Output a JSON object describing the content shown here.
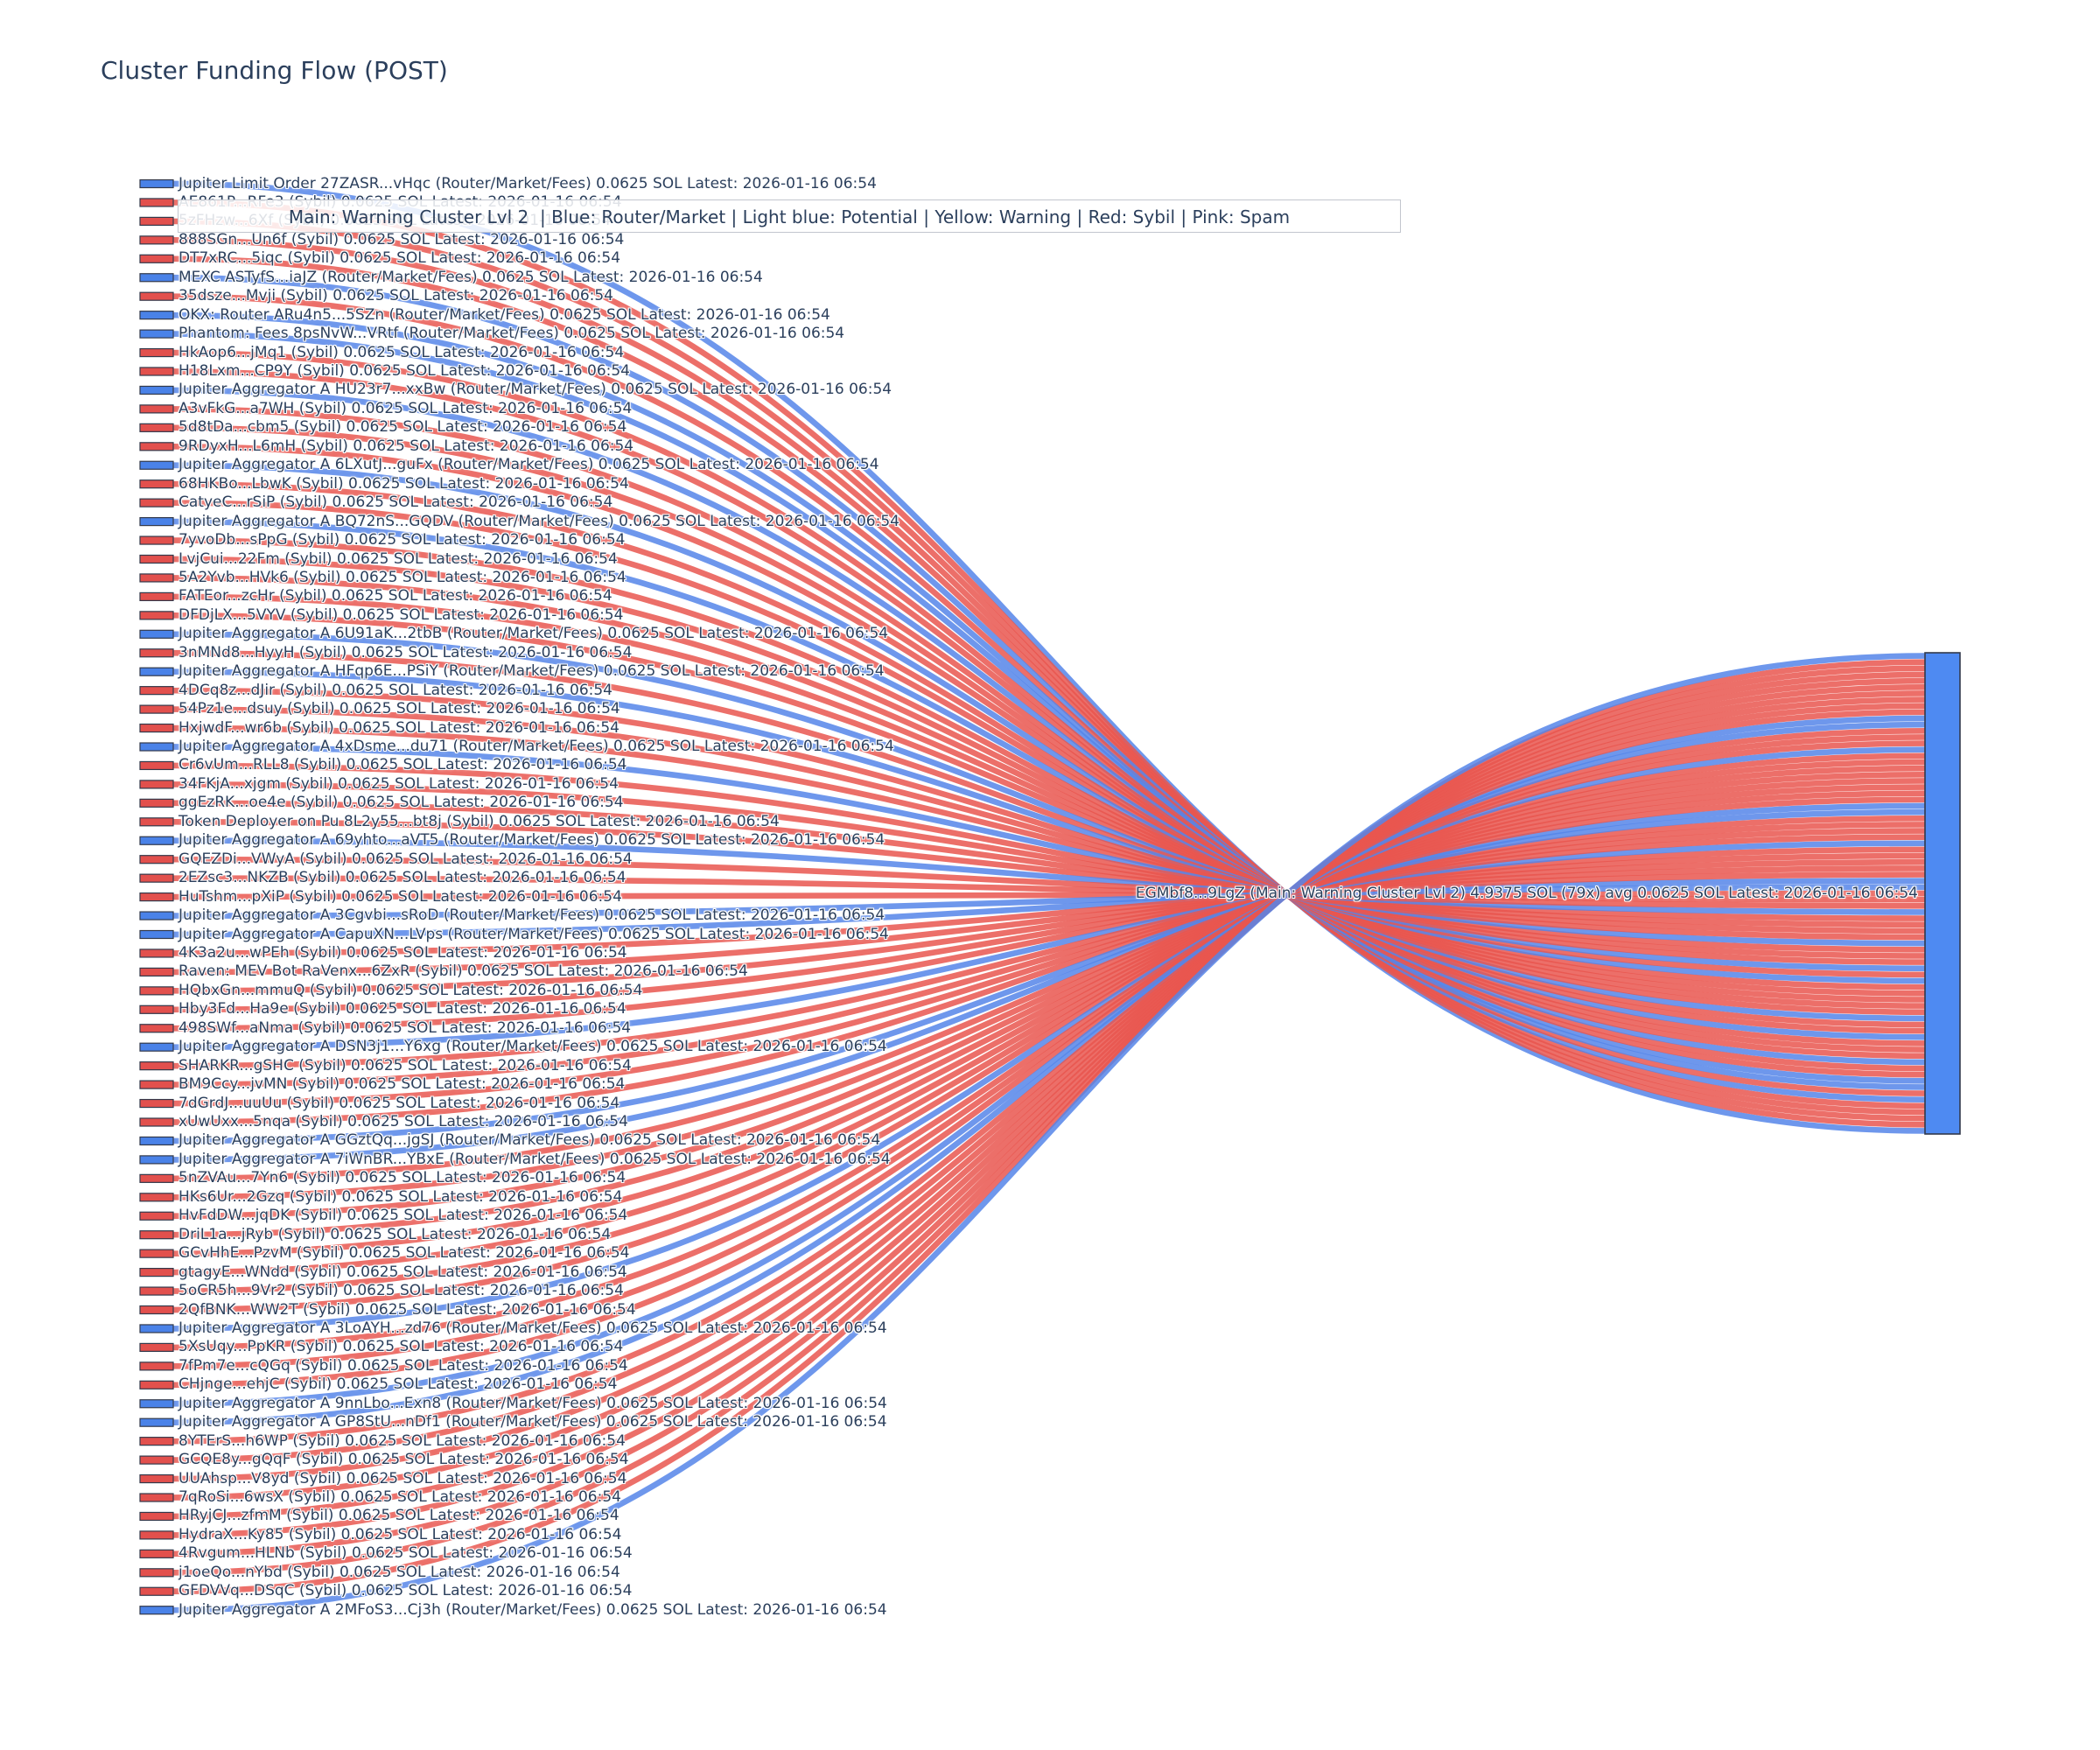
{
  "title": "Cluster Funding Flow (POST)",
  "legend_annotation": "Main: Warning Cluster Lvl 2  | Blue: Router/Market | Light blue: Potential | Yellow: Warning | Red: Sybil | Pink: Spam",
  "colors": {
    "router_node": "#4a82e8",
    "router_link": "#5585e9",
    "sybil_node": "#e2504d",
    "sybil_link": "#e9564f",
    "target_node": "#4e8af2",
    "node_border": "#32394b",
    "label_text": "#2b3f5c"
  },
  "chart_data": {
    "type": "sankey",
    "unit_value_sol": 0.0625,
    "total_sol": 4.9375,
    "flow_count": "79x",
    "latest": "2026-01-16 06:54",
    "target": {
      "label": "EGMbf8...9LgZ (Main: Warning Cluster Lvl 2) 4.9375 SOL (79x) avg 0.0625 SOL Latest: 2026-01-16 06:54"
    },
    "sources": [
      {
        "type": "router",
        "label": "Jupiter Limit Order 27ZASR...vHqc (Router/Market/Fees) 0.0625 SOL Latest: 2026-01-16 06:54"
      },
      {
        "type": "sybil",
        "label": "AE861P...RFe3 (Sybil) 0.0625 SOL Latest: 2026-01-16 06:54"
      },
      {
        "type": "sybil",
        "label": "5zFHzw...6Xf (Sybil) 0.0625 SOL Latest: 2026-01-16 06:54"
      },
      {
        "type": "sybil",
        "label": "888SGn...Un6f (Sybil) 0.0625 SOL Latest: 2026-01-16 06:54"
      },
      {
        "type": "sybil",
        "label": "DT7xRC...5iqc (Sybil) 0.0625 SOL Latest: 2026-01-16 06:54"
      },
      {
        "type": "router",
        "label": "MEXC ASTyfS...iaJZ (Router/Market/Fees) 0.0625 SOL Latest: 2026-01-16 06:54"
      },
      {
        "type": "sybil",
        "label": "35dsze...Mvji (Sybil) 0.0625 SOL Latest: 2026-01-16 06:54"
      },
      {
        "type": "router",
        "label": "OKX: Router ARu4n5...5SZn (Router/Market/Fees) 0.0625 SOL Latest: 2026-01-16 06:54"
      },
      {
        "type": "router",
        "label": "Phantom: Fees 8psNvW...VRtf (Router/Market/Fees) 0.0625 SOL Latest: 2026-01-16 06:54"
      },
      {
        "type": "sybil",
        "label": "HkAop6...jMq1 (Sybil) 0.0625 SOL Latest: 2026-01-16 06:54"
      },
      {
        "type": "sybil",
        "label": "H18Lxm...CP9Y (Sybil) 0.0625 SOL Latest: 2026-01-16 06:54"
      },
      {
        "type": "router",
        "label": "Jupiter Aggregator A HU23r7...xxBw (Router/Market/Fees) 0.0625 SOL Latest: 2026-01-16 06:54"
      },
      {
        "type": "sybil",
        "label": "A3vFkG...a7WH (Sybil) 0.0625 SOL Latest: 2026-01-16 06:54"
      },
      {
        "type": "sybil",
        "label": "5d8tDa...cbm5 (Sybil) 0.0625 SOL Latest: 2026-01-16 06:54"
      },
      {
        "type": "sybil",
        "label": "9RDyxH...L6mH (Sybil) 0.0625 SOL Latest: 2026-01-16 06:54"
      },
      {
        "type": "router",
        "label": "Jupiter Aggregator A 6LXutJ...guFx (Router/Market/Fees) 0.0625 SOL Latest: 2026-01-16 06:54"
      },
      {
        "type": "sybil",
        "label": "68HKBo...LbwK (Sybil) 0.0625 SOL Latest: 2026-01-16 06:54"
      },
      {
        "type": "sybil",
        "label": "CatyeC...rSiP (Sybil) 0.0625 SOL Latest: 2026-01-16 06:54"
      },
      {
        "type": "router",
        "label": "Jupiter Aggregator A BQ72nS...GQDV (Router/Market/Fees) 0.0625 SOL Latest: 2026-01-16 06:54"
      },
      {
        "type": "sybil",
        "label": "7yvoDb...sPpG (Sybil) 0.0625 SOL Latest: 2026-01-16 06:54"
      },
      {
        "type": "sybil",
        "label": "LvjCui...22Fm (Sybil) 0.0625 SOL Latest: 2026-01-16 06:54"
      },
      {
        "type": "sybil",
        "label": "5A2Yvb...HVk6 (Sybil) 0.0625 SOL Latest: 2026-01-16 06:54"
      },
      {
        "type": "sybil",
        "label": "FATEor...zcHr (Sybil) 0.0625 SOL Latest: 2026-01-16 06:54"
      },
      {
        "type": "sybil",
        "label": "DFDjLX...5VYV (Sybil) 0.0625 SOL Latest: 2026-01-16 06:54"
      },
      {
        "type": "router",
        "label": "Jupiter Aggregator A 6U91aK...2tbB (Router/Market/Fees) 0.0625 SOL Latest: 2026-01-16 06:54"
      },
      {
        "type": "sybil",
        "label": "3nMNd8...HyyH (Sybil) 0.0625 SOL Latest: 2026-01-16 06:54"
      },
      {
        "type": "router",
        "label": "Jupiter Aggregator A HFqp6E...PSiY (Router/Market/Fees) 0.0625 SOL Latest: 2026-01-16 06:54"
      },
      {
        "type": "sybil",
        "label": "4DCq8z...dJir (Sybil) 0.0625 SOL Latest: 2026-01-16 06:54"
      },
      {
        "type": "sybil",
        "label": "54Pz1e...dsuy (Sybil) 0.0625 SOL Latest: 2026-01-16 06:54"
      },
      {
        "type": "sybil",
        "label": "HxjwdF...wr6b (Sybil) 0.0625 SOL Latest: 2026-01-16 06:54"
      },
      {
        "type": "router",
        "label": "Jupiter Aggregator A 4xDsme...du71 (Router/Market/Fees) 0.0625 SOL Latest: 2026-01-16 06:54"
      },
      {
        "type": "sybil",
        "label": "Cr6vUm...RLL8 (Sybil) 0.0625 SOL Latest: 2026-01-16 06:54"
      },
      {
        "type": "sybil",
        "label": "34FKjA...xjgm (Sybil) 0.0625 SOL Latest: 2026-01-16 06:54"
      },
      {
        "type": "sybil",
        "label": "ggEzRK...oe4e (Sybil) 0.0625 SOL Latest: 2026-01-16 06:54"
      },
      {
        "type": "sybil",
        "label": "Token Deployer on Pu 8L2y55...bt8j (Sybil) 0.0625 SOL Latest: 2026-01-16 06:54"
      },
      {
        "type": "router",
        "label": "Jupiter Aggregator A 69yhto...aVT5 (Router/Market/Fees) 0.0625 SOL Latest: 2026-01-16 06:54"
      },
      {
        "type": "sybil",
        "label": "GQEZDi...VWyA (Sybil) 0.0625 SOL Latest: 2026-01-16 06:54"
      },
      {
        "type": "sybil",
        "label": "2EZsc3...NKZB (Sybil) 0.0625 SOL Latest: 2026-01-16 06:54"
      },
      {
        "type": "sybil",
        "label": "HuTshm...pXiP (Sybil) 0.0625 SOL Latest: 2026-01-16 06:54"
      },
      {
        "type": "router",
        "label": "Jupiter Aggregator A 3Cgvbi...sRoD (Router/Market/Fees) 0.0625 SOL Latest: 2026-01-16 06:54"
      },
      {
        "type": "router",
        "label": "Jupiter Aggregator A CapuXN...LVps (Router/Market/Fees) 0.0625 SOL Latest: 2026-01-16 06:54"
      },
      {
        "type": "sybil",
        "label": "4K3a2u...wPEh (Sybil) 0.0625 SOL Latest: 2026-01-16 06:54"
      },
      {
        "type": "sybil",
        "label": "Raven: MEV Bot RaVenx...6ZxR (Sybil) 0.0625 SOL Latest: 2026-01-16 06:54"
      },
      {
        "type": "sybil",
        "label": "HQbxGn...mmuQ (Sybil) 0.0625 SOL Latest: 2026-01-16 06:54"
      },
      {
        "type": "sybil",
        "label": "Hby3Fd...Ha9e (Sybil) 0.0625 SOL Latest: 2026-01-16 06:54"
      },
      {
        "type": "sybil",
        "label": "498SWf...aNma (Sybil) 0.0625 SOL Latest: 2026-01-16 06:54"
      },
      {
        "type": "router",
        "label": "Jupiter Aggregator A DSN3j1...Y6xg (Router/Market/Fees) 0.0625 SOL Latest: 2026-01-16 06:54"
      },
      {
        "type": "sybil",
        "label": "SHARKR...gSHC (Sybil) 0.0625 SOL Latest: 2026-01-16 06:54"
      },
      {
        "type": "sybil",
        "label": "BM9Ccy...jvMN (Sybil) 0.0625 SOL Latest: 2026-01-16 06:54"
      },
      {
        "type": "sybil",
        "label": "7dGrdJ...uuUu (Sybil) 0.0625 SOL Latest: 2026-01-16 06:54"
      },
      {
        "type": "sybil",
        "label": "xUwUxx...5nqa (Sybil) 0.0625 SOL Latest: 2026-01-16 06:54"
      },
      {
        "type": "router",
        "label": "Jupiter Aggregator A GGztQq...jgSJ (Router/Market/Fees) 0.0625 SOL Latest: 2026-01-16 06:54"
      },
      {
        "type": "router",
        "label": "Jupiter Aggregator A 7iWnBR...YBxE (Router/Market/Fees) 0.0625 SOL Latest: 2026-01-16 06:54"
      },
      {
        "type": "sybil",
        "label": "5nZVAu...7Yn6 (Sybil) 0.0625 SOL Latest: 2026-01-16 06:54"
      },
      {
        "type": "sybil",
        "label": "HKs6Ur...2Gzq (Sybil) 0.0625 SOL Latest: 2026-01-16 06:54"
      },
      {
        "type": "sybil",
        "label": "HvFdDW...jqDK (Sybil) 0.0625 SOL Latest: 2026-01-16 06:54"
      },
      {
        "type": "sybil",
        "label": "DriL1a...jRyb (Sybil) 0.0625 SOL Latest: 2026-01-16 06:54"
      },
      {
        "type": "sybil",
        "label": "GCvHhE...PzvM (Sybil) 0.0625 SOL Latest: 2026-01-16 06:54"
      },
      {
        "type": "sybil",
        "label": "gtagyE...WNdd (Sybil) 0.0625 SOL Latest: 2026-01-16 06:54"
      },
      {
        "type": "sybil",
        "label": "5oCR5h...9Vr2 (Sybil) 0.0625 SOL Latest: 2026-01-16 06:54"
      },
      {
        "type": "sybil",
        "label": "2QfBNK...WW2T (Sybil) 0.0625 SOL Latest: 2026-01-16 06:54"
      },
      {
        "type": "router",
        "label": "Jupiter Aggregator A 3LoAYH...zd76 (Router/Market/Fees) 0.0625 SOL Latest: 2026-01-16 06:54"
      },
      {
        "type": "sybil",
        "label": "5XsUqy...PpKR (Sybil) 0.0625 SOL Latest: 2026-01-16 06:54"
      },
      {
        "type": "sybil",
        "label": "7fPm7e...cQGq (Sybil) 0.0625 SOL Latest: 2026-01-16 06:54"
      },
      {
        "type": "sybil",
        "label": "CHjnge...ehjC (Sybil) 0.0625 SOL Latest: 2026-01-16 06:54"
      },
      {
        "type": "router",
        "label": "Jupiter Aggregator A 9nnLbo...Exn8 (Router/Market/Fees) 0.0625 SOL Latest: 2026-01-16 06:54"
      },
      {
        "type": "router",
        "label": "Jupiter Aggregator A GP8StU...nDf1 (Router/Market/Fees) 0.0625 SOL Latest: 2026-01-16 06:54"
      },
      {
        "type": "sybil",
        "label": "8YTErS...h6WP (Sybil) 0.0625 SOL Latest: 2026-01-16 06:54"
      },
      {
        "type": "sybil",
        "label": "GCQE8y...gQqF (Sybil) 0.0625 SOL Latest: 2026-01-16 06:54"
      },
      {
        "type": "sybil",
        "label": "UUAhsp...V8yd (Sybil) 0.0625 SOL Latest: 2026-01-16 06:54"
      },
      {
        "type": "sybil",
        "label": "7qRoSi...6wsX (Sybil) 0.0625 SOL Latest: 2026-01-16 06:54"
      },
      {
        "type": "sybil",
        "label": "HRyjCJ...zfmM (Sybil) 0.0625 SOL Latest: 2026-01-16 06:54"
      },
      {
        "type": "sybil",
        "label": "HydraX...Ky85 (Sybil) 0.0625 SOL Latest: 2026-01-16 06:54"
      },
      {
        "type": "sybil",
        "label": "4Rvgum...HLNb (Sybil) 0.0625 SOL Latest: 2026-01-16 06:54"
      },
      {
        "type": "sybil",
        "label": "j1oeQo...nYbd (Sybil) 0.0625 SOL Latest: 2026-01-16 06:54"
      },
      {
        "type": "sybil",
        "label": "GFDVVq...DSqC (Sybil) 0.0625 SOL Latest: 2026-01-16 06:54"
      },
      {
        "type": "router",
        "label": "Jupiter Aggregator A 2MFoS3...Cj3h (Router/Market/Fees) 0.0625 SOL Latest: 2026-01-16 06:54"
      }
    ]
  }
}
